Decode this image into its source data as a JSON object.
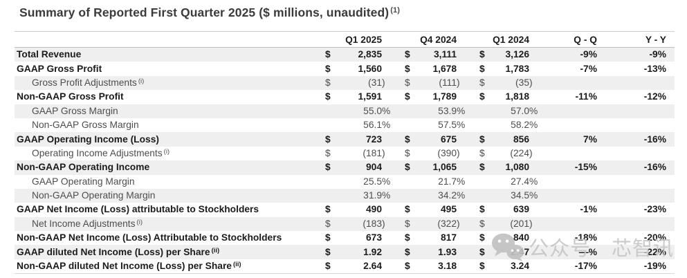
{
  "title": {
    "text": "Summary of Reported First Quarter 2025 ($ millions, unaudited)",
    "sup": "(1)"
  },
  "table": {
    "columns": [
      "Q1 2025",
      "Q4 2024",
      "Q1 2024",
      "Q - Q",
      "Y - Y"
    ],
    "rows": [
      {
        "label": "Total Revenue",
        "sup": "",
        "bold": true,
        "indent": false,
        "dollar": true,
        "v1": "2,835",
        "v2": "3,111",
        "v3": "3,126",
        "qq": "-9%",
        "yy": "-9%"
      },
      {
        "label": "GAAP Gross Profit",
        "sup": "",
        "bold": true,
        "indent": false,
        "dollar": true,
        "v1": "1,560",
        "v2": "1,678",
        "v3": "1,783",
        "qq": "-7%",
        "yy": "-13%"
      },
      {
        "label": "Gross Profit Adjustments",
        "sup": "(i)",
        "bold": false,
        "indent": true,
        "dollar": true,
        "v1": "(31)",
        "v2": "(111)",
        "v3": "(35)",
        "qq": "",
        "yy": ""
      },
      {
        "label": "Non-GAAP Gross Profit",
        "sup": "",
        "bold": true,
        "indent": false,
        "dollar": true,
        "v1": "1,591",
        "v2": "1,789",
        "v3": "1,818",
        "qq": "-11%",
        "yy": "-12%"
      },
      {
        "label": "GAAP Gross Margin",
        "sup": "",
        "bold": false,
        "indent": true,
        "dollar": false,
        "v1": "55.0%",
        "v2": "53.9%",
        "v3": "57.0%",
        "qq": "",
        "yy": ""
      },
      {
        "label": "Non-GAAP Gross Margin",
        "sup": "",
        "bold": false,
        "indent": true,
        "dollar": false,
        "v1": "56.1%",
        "v2": "57.5%",
        "v3": "58.2%",
        "qq": "",
        "yy": ""
      },
      {
        "label": "GAAP Operating Income (Loss)",
        "sup": "",
        "bold": true,
        "indent": false,
        "dollar": true,
        "v1": "723",
        "v2": "675",
        "v3": "856",
        "qq": "7%",
        "yy": "-16%"
      },
      {
        "label": "Operating Income Adjustments",
        "sup": "(i)",
        "bold": false,
        "indent": true,
        "dollar": true,
        "v1": "(181)",
        "v2": "(390)",
        "v3": "(224)",
        "qq": "",
        "yy": ""
      },
      {
        "label": "Non-GAAP Operating Income",
        "sup": "",
        "bold": true,
        "indent": false,
        "dollar": true,
        "v1": "904",
        "v2": "1,065",
        "v3": "1,080",
        "qq": "-15%",
        "yy": "-16%"
      },
      {
        "label": "GAAP Operating Margin",
        "sup": "",
        "bold": false,
        "indent": true,
        "dollar": false,
        "v1": "25.5%",
        "v2": "21.7%",
        "v3": "27.4%",
        "qq": "",
        "yy": ""
      },
      {
        "label": "Non-GAAP Operating Margin",
        "sup": "",
        "bold": false,
        "indent": true,
        "dollar": false,
        "v1": "31.9%",
        "v2": "34.2%",
        "v3": "34.5%",
        "qq": "",
        "yy": ""
      },
      {
        "label": "GAAP Net Income (Loss) attributable to Stockholders",
        "sup": "",
        "bold": true,
        "indent": false,
        "dollar": true,
        "v1": "490",
        "v2": "495",
        "v3": "639",
        "qq": "-1%",
        "yy": "-23%"
      },
      {
        "label": "Net Income Adjustments",
        "sup": "(i)",
        "bold": false,
        "indent": true,
        "dollar": true,
        "v1": "(183)",
        "v2": "(322)",
        "v3": "(201)",
        "qq": "",
        "yy": ""
      },
      {
        "label": "Non-GAAP Net Income (Loss) Attributable to Stockholders",
        "sup": "",
        "bold": true,
        "indent": false,
        "dollar": true,
        "v1": "673",
        "v2": "817",
        "v3": "840",
        "qq": "-18%",
        "yy": "-20%"
      },
      {
        "label": "GAAP diluted Net Income (Loss) per Share",
        "sup": "(ii)",
        "bold": true,
        "indent": false,
        "dollar": true,
        "v1": "1.92",
        "v2": "1.93",
        "v3": "2.47",
        "qq": "—%",
        "yy": "-22%"
      },
      {
        "label": "Non-GAAP diluted Net Income (Loss) per Share",
        "sup": "(ii)",
        "bold": true,
        "indent": false,
        "dollar": true,
        "v1": "2.64",
        "v2": "3.18",
        "v3": "3.24",
        "qq": "-17%",
        "yy": "-19%"
      }
    ]
  },
  "watermark": {
    "icon": "wechat-icon",
    "text1": "公众号",
    "text2": "芯智讯"
  },
  "colors": {
    "stripe": "#efefef",
    "bold_text": "#1b1b1b",
    "regular_text": "#4d4d4d",
    "watermark": "#c6c6c6"
  }
}
